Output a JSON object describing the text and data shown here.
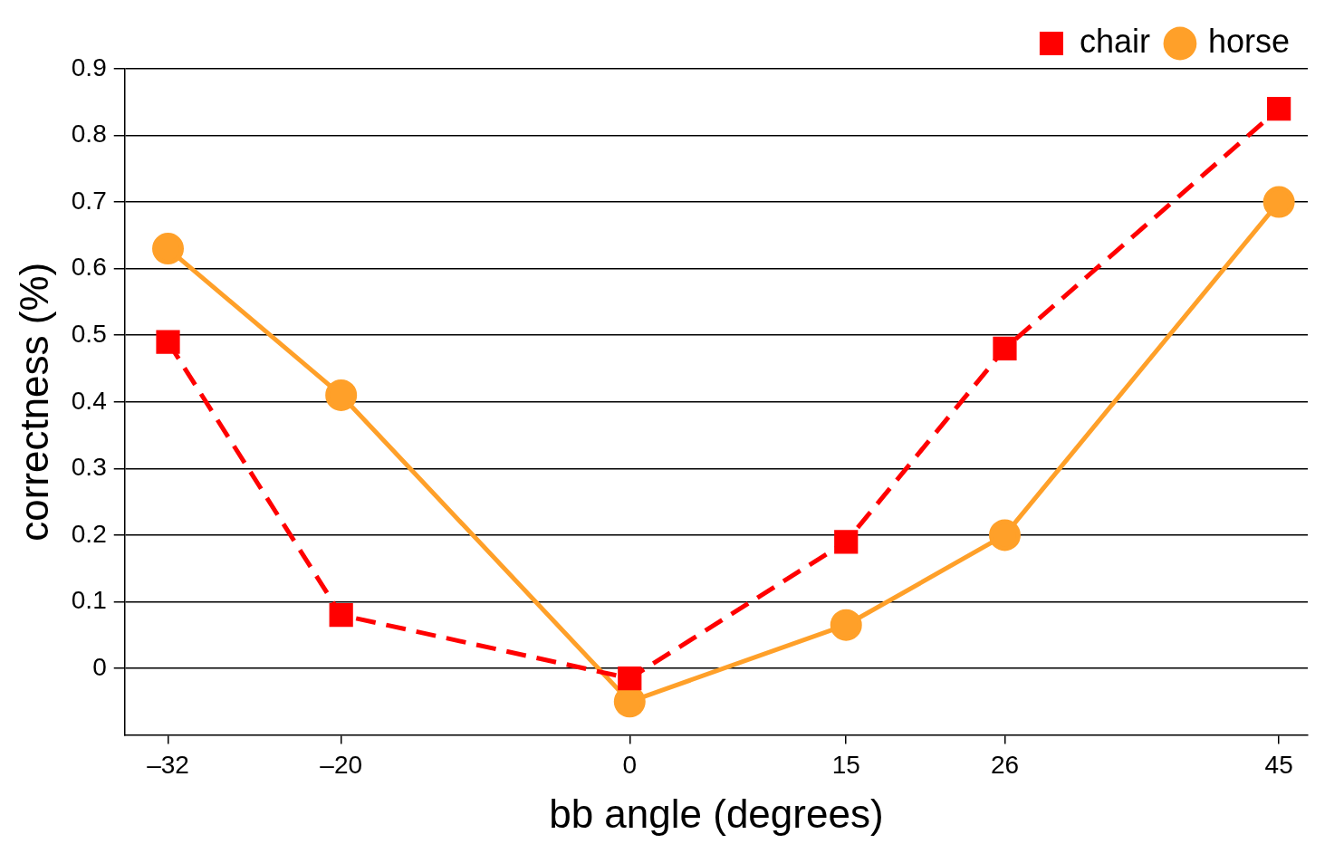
{
  "chart_data": {
    "type": "line",
    "xlabel": "bb angle (degrees)",
    "ylabel": "correctness (%)",
    "x": [
      -32,
      -20,
      0,
      15,
      26,
      45
    ],
    "series": [
      {
        "name": "chair",
        "color": "#ff0000",
        "values": [
          0.49,
          0.08,
          -0.015,
          0.19,
          0.48,
          0.84
        ],
        "marker": "square",
        "line_style": "dashed"
      },
      {
        "name": "horse",
        "color": "#ffa029",
        "values": [
          0.63,
          0.41,
          -0.05,
          0.065,
          0.2,
          0.7
        ],
        "marker": "circle",
        "line_style": "solid"
      }
    ],
    "xlim": [
      -35,
      47
    ],
    "xticks": [
      {
        "value": -32,
        "label": "–32"
      },
      {
        "value": -20,
        "label": "–20"
      },
      0,
      15,
      26,
      45
    ],
    "ylim": [
      -0.1,
      0.9
    ],
    "yticks": [
      0,
      0.1,
      0.2,
      0.3,
      0.4,
      0.5,
      0.6,
      0.7,
      0.8,
      0.9
    ],
    "grid": "y",
    "legend": "top right"
  }
}
